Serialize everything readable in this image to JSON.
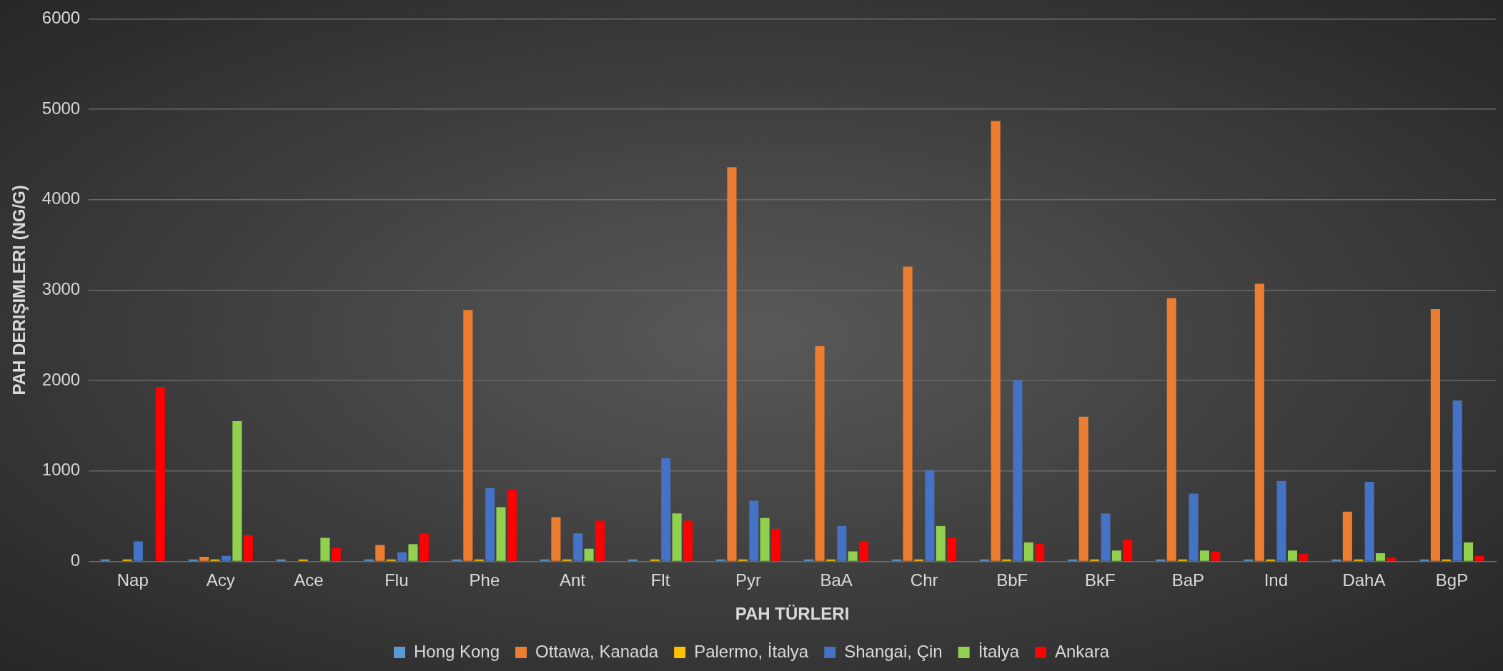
{
  "chart_data": {
    "type": "bar",
    "xlabel": "PAH TÜRLERI",
    "ylabel": "PAH DERIŞIMLERI (NG/G)",
    "categories": [
      "Nap",
      "Acy",
      "Ace",
      "Flu",
      "Phe",
      "Ant",
      "Flt",
      "Pyr",
      "BaA",
      "Chr",
      "BbF",
      "BkF",
      "BaP",
      "Ind",
      "DahA",
      "BgP"
    ],
    "series": [
      {
        "name": "Hong Kong",
        "color": "#5b9bd5",
        "values": [
          20,
          20,
          20,
          20,
          20,
          20,
          20,
          20,
          20,
          20,
          20,
          20,
          20,
          20,
          20,
          20
        ]
      },
      {
        "name": "Ottawa, Kanada",
        "color": "#ed7d31",
        "values": [
          0,
          50,
          0,
          180,
          2780,
          490,
          0,
          4360,
          2380,
          3260,
          4870,
          1600,
          2910,
          3070,
          550,
          2790
        ]
      },
      {
        "name": "Palermo, İtalya",
        "color": "#ffc000",
        "values": [
          20,
          20,
          20,
          20,
          20,
          20,
          20,
          20,
          20,
          20,
          20,
          20,
          20,
          20,
          20,
          20
        ]
      },
      {
        "name": "Shangai, Çin",
        "color": "#4472c4",
        "values": [
          220,
          60,
          0,
          100,
          810,
          310,
          1140,
          670,
          390,
          1010,
          2000,
          530,
          750,
          890,
          880,
          1780
        ]
      },
      {
        "name": "İtalya",
        "color": "#92d050",
        "values": [
          0,
          1550,
          260,
          190,
          600,
          140,
          530,
          480,
          110,
          390,
          210,
          120,
          120,
          120,
          90,
          210
        ]
      },
      {
        "name": "Ankara",
        "color": "#ff0000",
        "values": [
          1930,
          290,
          150,
          310,
          790,
          450,
          450,
          360,
          220,
          260,
          190,
          240,
          110,
          80,
          40,
          60
        ]
      }
    ],
    "ylim": [
      0,
      6000
    ],
    "yticks": [
      0,
      1000,
      2000,
      3000,
      4000,
      5000,
      6000
    ],
    "grid": "y",
    "legend": "bottom"
  }
}
